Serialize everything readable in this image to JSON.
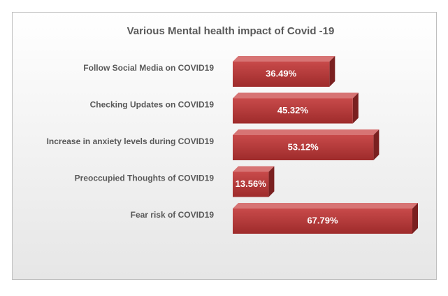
{
  "chart_data": {
    "type": "bar",
    "orientation": "horizontal",
    "title": "Various Mental  health impact of Covid -19",
    "categories": [
      "Follow Social Media on COVID19",
      "Checking Updates on COVID19",
      "Increase in anxiety levels during COVID19",
      "Preoccupied Thoughts of COVID19",
      "Fear risk of COVID19"
    ],
    "values": [
      36.49,
      45.32,
      53.12,
      13.56,
      67.79
    ],
    "value_labels": [
      "36.49%",
      "45.32%",
      "53.12%",
      "13.56%",
      "67.79%"
    ],
    "color": "#b83a3a"
  }
}
